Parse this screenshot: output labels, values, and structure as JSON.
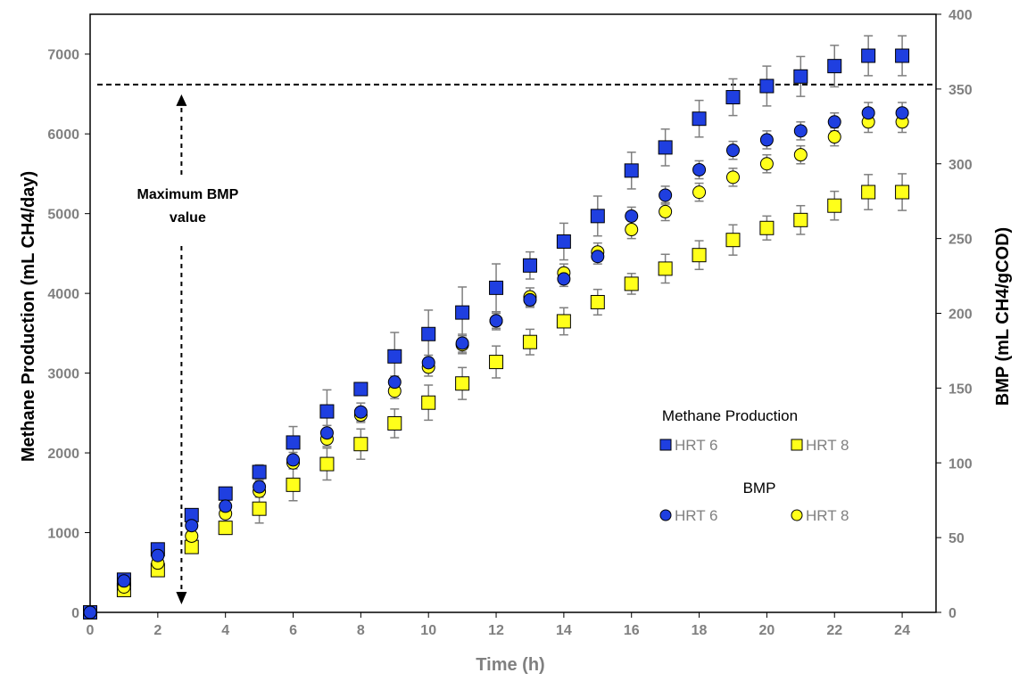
{
  "chart_data": {
    "type": "scatter",
    "xlabel": "Time (h)",
    "ylabel_left": "Methane Production (mL CH4/day)",
    "ylabel_right": "BMP (mL CH4/gCOD)",
    "xlim": [
      0,
      25
    ],
    "ylim_left": [
      0,
      7500
    ],
    "ylim_right": [
      0,
      400
    ],
    "x_ticks": [
      0,
      2,
      4,
      6,
      8,
      10,
      12,
      14,
      16,
      18,
      20,
      22,
      24
    ],
    "y_left_ticks": [
      0,
      1000,
      2000,
      3000,
      4000,
      5000,
      6000,
      7000
    ],
    "y_right_ticks": [
      0,
      50,
      100,
      150,
      200,
      250,
      300,
      350,
      400
    ],
    "grid": false,
    "x": [
      0,
      1,
      2,
      3,
      4,
      5,
      6,
      7,
      8,
      9,
      10,
      11,
      12,
      13,
      14,
      15,
      16,
      17,
      18,
      19,
      20,
      21,
      22,
      23,
      24
    ],
    "series": [
      {
        "name": "HRT 6",
        "group": "Methane Production",
        "axis": "left",
        "marker": "square",
        "color": "#1F3FE0",
        "values": [
          0,
          410,
          790,
          1220,
          1490,
          1760,
          2130,
          2520,
          2800,
          3210,
          3490,
          3760,
          4070,
          4350,
          4650,
          4970,
          5540,
          5830,
          6190,
          6460,
          6600,
          6720,
          6850,
          6980,
          6980
        ],
        "errors": [
          0,
          40,
          50,
          60,
          70,
          90,
          200,
          270,
          80,
          300,
          300,
          320,
          300,
          170,
          230,
          250,
          230,
          230,
          230,
          230,
          250,
          250,
          260,
          250,
          250
        ]
      },
      {
        "name": "HRT 8",
        "group": "Methane Production",
        "axis": "left",
        "marker": "square",
        "color": "#FFFF1A",
        "values": [
          0,
          280,
          530,
          820,
          1060,
          1300,
          1600,
          1860,
          2110,
          2370,
          2630,
          2870,
          3140,
          3390,
          3650,
          3890,
          4120,
          4310,
          4480,
          4670,
          4820,
          4920,
          5100,
          5270,
          5270
        ],
        "errors": [
          0,
          40,
          50,
          60,
          80,
          180,
          200,
          200,
          190,
          180,
          220,
          200,
          200,
          160,
          170,
          160,
          130,
          180,
          180,
          190,
          150,
          180,
          180,
          220,
          230
        ]
      },
      {
        "name": "HRT 6",
        "group": "BMP",
        "axis": "right",
        "marker": "circle",
        "color": "#1F3FE0",
        "values": [
          0,
          21,
          38,
          58,
          71,
          84,
          102,
          120,
          134,
          154,
          167,
          180,
          195,
          209,
          223,
          238,
          265,
          279,
          296,
          309,
          316,
          322,
          328,
          334,
          334
        ],
        "errors": [
          0,
          2,
          3,
          3,
          4,
          4,
          5,
          5,
          6,
          4,
          5,
          6,
          5,
          5,
          5,
          5,
          6,
          6,
          6,
          6,
          6,
          6,
          6,
          7,
          7
        ]
      },
      {
        "name": "HRT 8",
        "group": "BMP",
        "axis": "right",
        "marker": "circle",
        "color": "#FFFF1A",
        "values": [
          0,
          17,
          33,
          51,
          66,
          81,
          100,
          116,
          132,
          148,
          164,
          179,
          195,
          211,
          227,
          241,
          256,
          268,
          281,
          291,
          300,
          306,
          318,
          328,
          328
        ],
        "errors": [
          0,
          2,
          2,
          3,
          3,
          4,
          4,
          5,
          5,
          5,
          6,
          6,
          6,
          6,
          6,
          6,
          6,
          6,
          6,
          6,
          6,
          6,
          6,
          7,
          7
        ]
      }
    ],
    "reference_line": {
      "axis": "right",
      "value": 353,
      "style": "dashed"
    },
    "annotation": {
      "lines": [
        "Maximum BMP",
        "value"
      ],
      "x": 2.7
    },
    "legend": {
      "placement": "center-right",
      "groups": [
        {
          "title": "Methane Production",
          "items": [
            "HRT 6",
            "HRT 8"
          ]
        },
        {
          "title": "BMP",
          "items": [
            "HRT 6",
            "HRT 8"
          ]
        }
      ]
    }
  }
}
